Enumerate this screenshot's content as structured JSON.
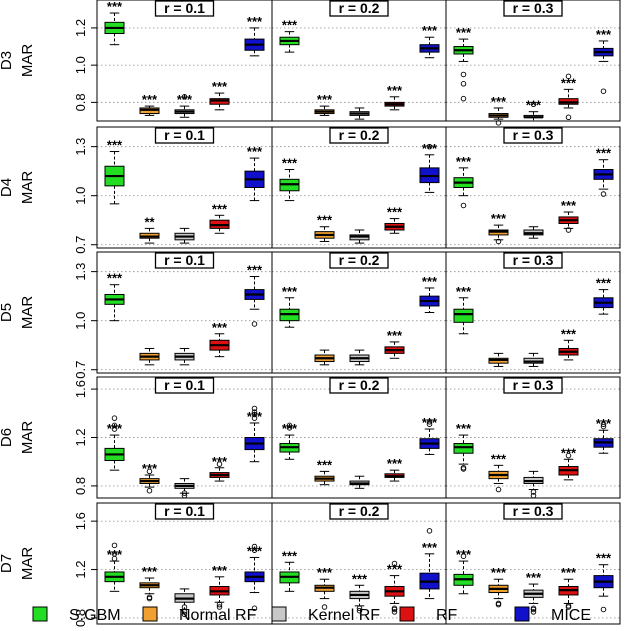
{
  "chart_data": {
    "type": "boxplot",
    "layout": "5 rows x 3 columns of small-multiple boxplot panels",
    "ylabel": "MAR",
    "columns": [
      "r = 0.1",
      "r = 0.2",
      "r = 0.3"
    ],
    "methods": [
      "S.GBM",
      "Normal RF",
      "Kernel RF",
      "RF",
      "MICE"
    ],
    "method_colors": [
      "#22dd22",
      "#f0a030",
      "#c8c8c8",
      "#dd1111",
      "#1111cc"
    ],
    "rows": [
      {
        "dataset": "D3",
        "ylim": [
          0.7,
          1.35
        ],
        "ticks": [
          0.8,
          1.0,
          1.2
        ],
        "tick_labels": [
          "0.8",
          "1.0",
          "1.2"
        ],
        "panels": [
          {
            "boxes": [
              [
                1.11,
                1.17,
                1.2,
                1.23,
                1.28
              ],
              [
                0.73,
                0.74,
                0.76,
                0.77,
                0.78
              ],
              [
                0.72,
                0.74,
                0.75,
                0.76,
                0.78
              ],
              [
                0.76,
                0.79,
                0.81,
                0.82,
                0.85
              ],
              [
                1.05,
                1.08,
                1.11,
                1.14,
                1.2
              ]
            ],
            "outliers": [
              [],
              [],
              [
                0.83
              ],
              [],
              []
            ],
            "stars": [
              "***",
              "***",
              "***",
              "***",
              "***"
            ]
          },
          {
            "boxes": [
              [
                1.07,
                1.11,
                1.13,
                1.15,
                1.18
              ],
              [
                0.73,
                0.74,
                0.75,
                0.76,
                0.78
              ],
              [
                0.71,
                0.73,
                0.74,
                0.75,
                0.77
              ],
              [
                0.76,
                0.78,
                0.79,
                0.8,
                0.83
              ],
              [
                1.04,
                1.07,
                1.09,
                1.11,
                1.15
              ]
            ],
            "outliers": [
              [],
              [],
              [],
              [],
              []
            ],
            "stars": [
              "***",
              "***",
              "",
              "***",
              "***"
            ]
          },
          {
            "boxes": [
              [
                1.02,
                1.06,
                1.08,
                1.1,
                1.14
              ],
              [
                0.71,
                0.72,
                0.73,
                0.74,
                0.77
              ],
              [
                0.7,
                0.72,
                0.72,
                0.73,
                0.75
              ],
              [
                0.77,
                0.79,
                0.8,
                0.82,
                0.87
              ],
              [
                1.02,
                1.05,
                1.07,
                1.09,
                1.13
              ]
            ],
            "outliers": [
              [
                0.82,
                0.9,
                0.95
              ],
              [
                0.69
              ],
              [
                0.79
              ],
              [
                0.72,
                0.94
              ],
              [
                0.86
              ]
            ],
            "stars": [
              "***",
              "***",
              "***",
              "***",
              "***"
            ]
          }
        ]
      },
      {
        "dataset": "D4",
        "ylim": [
          0.68,
          1.42
        ],
        "ticks": [
          0.7,
          1.0,
          1.3
        ],
        "tick_labels": [
          "0.7",
          "1.0",
          "1.3"
        ],
        "panels": [
          {
            "boxes": [
              [
                0.95,
                1.06,
                1.12,
                1.18,
                1.27
              ],
              [
                0.71,
                0.74,
                0.75,
                0.77,
                0.8
              ],
              [
                0.71,
                0.73,
                0.75,
                0.77,
                0.8
              ],
              [
                0.77,
                0.8,
                0.82,
                0.85,
                0.88
              ],
              [
                0.97,
                1.05,
                1.1,
                1.15,
                1.23
              ]
            ],
            "outliers": [
              [],
              [],
              [],
              [],
              []
            ],
            "stars": [
              "***",
              "**",
              "",
              "***",
              "***"
            ]
          },
          {
            "boxes": [
              [
                0.97,
                1.03,
                1.07,
                1.1,
                1.16
              ],
              [
                0.72,
                0.74,
                0.76,
                0.78,
                0.81
              ],
              [
                0.71,
                0.73,
                0.75,
                0.76,
                0.79
              ],
              [
                0.77,
                0.79,
                0.81,
                0.83,
                0.86
              ],
              [
                1.02,
                1.08,
                1.12,
                1.17,
                1.25
              ]
            ],
            "outliers": [
              [],
              [],
              [],
              [],
              [
                1.3
              ]
            ],
            "stars": [
              "***",
              "***",
              "",
              "***",
              "***"
            ]
          },
          {
            "boxes": [
              [
                1.0,
                1.05,
                1.08,
                1.11,
                1.17
              ],
              [
                0.73,
                0.76,
                0.78,
                0.79,
                0.82
              ],
              [
                0.74,
                0.76,
                0.77,
                0.79,
                0.81
              ],
              [
                0.8,
                0.83,
                0.85,
                0.87,
                0.9
              ],
              [
                1.04,
                1.1,
                1.13,
                1.16,
                1.22
              ]
            ],
            "outliers": [
              [
                0.94
              ],
              [
                0.72
              ],
              [],
              [
                0.79
              ],
              [
                1.01
              ]
            ],
            "stars": [
              "***",
              "***",
              "",
              "***",
              "***"
            ]
          }
        ]
      },
      {
        "dataset": "D5",
        "ylim": [
          0.68,
          1.42
        ],
        "ticks": [
          0.7,
          1.0,
          1.3
        ],
        "tick_labels": [
          "0.7",
          "1.0",
          "1.3"
        ],
        "panels": [
          {
            "boxes": [
              [
                1.0,
                1.1,
                1.13,
                1.16,
                1.22
              ],
              [
                0.73,
                0.76,
                0.78,
                0.8,
                0.83
              ],
              [
                0.73,
                0.76,
                0.78,
                0.8,
                0.83
              ],
              [
                0.78,
                0.82,
                0.85,
                0.88,
                0.92
              ],
              [
                1.07,
                1.13,
                1.16,
                1.19,
                1.27
              ]
            ],
            "outliers": [
              [],
              [],
              [],
              [],
              [
                0.98
              ]
            ],
            "stars": [
              "***",
              "",
              "",
              "***",
              "***"
            ]
          },
          {
            "boxes": [
              [
                0.96,
                1.0,
                1.04,
                1.07,
                1.14
              ],
              [
                0.73,
                0.75,
                0.77,
                0.79,
                0.82
              ],
              [
                0.73,
                0.75,
                0.77,
                0.79,
                0.82
              ],
              [
                0.77,
                0.8,
                0.82,
                0.84,
                0.87
              ],
              [
                1.05,
                1.09,
                1.12,
                1.15,
                1.2
              ]
            ],
            "outliers": [
              [],
              [],
              [],
              [],
              []
            ],
            "stars": [
              "***",
              "",
              "",
              "***",
              "***"
            ]
          },
          {
            "boxes": [
              [
                0.92,
                0.99,
                1.04,
                1.07,
                1.14
              ],
              [
                0.72,
                0.74,
                0.76,
                0.77,
                0.8
              ],
              [
                0.72,
                0.74,
                0.75,
                0.77,
                0.8
              ],
              [
                0.76,
                0.79,
                0.81,
                0.83,
                0.88
              ],
              [
                1.04,
                1.08,
                1.11,
                1.14,
                1.19
              ]
            ],
            "outliers": [
              [],
              [],
              [],
              [],
              []
            ],
            "stars": [
              "***",
              "",
              "",
              "***",
              "***"
            ]
          }
        ]
      },
      {
        "dataset": "D6",
        "ylim": [
          0.7,
          1.7
        ],
        "ticks": [
          0.8,
          1.2,
          1.6
        ],
        "tick_labels": [
          "0.8",
          "1.2",
          "1.6"
        ],
        "panels": [
          {
            "boxes": [
              [
                0.93,
                1.01,
                1.06,
                1.11,
                1.22
              ],
              [
                0.79,
                0.82,
                0.84,
                0.86,
                0.89
              ],
              [
                0.74,
                0.78,
                0.8,
                0.82,
                0.86
              ],
              [
                0.84,
                0.87,
                0.89,
                0.91,
                0.95
              ],
              [
                1.0,
                1.1,
                1.15,
                1.2,
                1.32
              ]
            ],
            "outliers": [
              [
                1.27,
                1.3,
                1.36
              ],
              [
                0.76,
                0.92
              ],
              [
                0.72,
                0.74
              ],
              [
                0.98
              ],
              [
                1.36,
                1.39,
                1.41,
                1.44
              ]
            ],
            "stars": [
              "***",
              "***",
              "",
              "***",
              "***"
            ]
          },
          {
            "boxes": [
              [
                1.02,
                1.08,
                1.12,
                1.15,
                1.22
              ],
              [
                0.81,
                0.84,
                0.86,
                0.88,
                0.92
              ],
              [
                0.78,
                0.81,
                0.82,
                0.84,
                0.88
              ],
              [
                0.84,
                0.87,
                0.88,
                0.9,
                0.93
              ],
              [
                1.06,
                1.11,
                1.15,
                1.19,
                1.27
              ]
            ],
            "outliers": [
              [
                1.28,
                1.3
              ],
              [],
              [],
              [],
              [
                1.31,
                1.33
              ]
            ],
            "stars": [
              "***",
              "***",
              "",
              "***",
              "***"
            ]
          },
          {
            "boxes": [
              [
                0.98,
                1.07,
                1.12,
                1.15,
                1.22
              ],
              [
                0.82,
                0.86,
                0.89,
                0.92,
                0.97
              ],
              [
                0.77,
                0.82,
                0.84,
                0.87,
                0.92
              ],
              [
                0.85,
                0.89,
                0.93,
                0.96,
                1.02
              ],
              [
                1.07,
                1.12,
                1.16,
                1.19,
                1.26
              ]
            ],
            "outliers": [
              [
                0.94,
                0.95
              ],
              [
                0.77
              ],
              [
                0.72,
                0.75
              ],
              [
                1.05
              ],
              [
                1.29,
                1.31
              ]
            ],
            "stars": [
              "***",
              "***",
              "",
              "***",
              "***"
            ]
          }
        ]
      },
      {
        "dataset": "D7",
        "ylim": [
          0.75,
          1.75
        ],
        "ticks": [
          0.8,
          1.2,
          1.6
        ],
        "tick_labels": [
          "0.8",
          "1.2",
          "1.6"
        ],
        "panels": [
          {
            "boxes": [
              [
                1.02,
                1.1,
                1.14,
                1.18,
                1.27
              ],
              [
                1.0,
                1.05,
                1.07,
                1.09,
                1.13
              ],
              [
                0.87,
                0.93,
                0.96,
                1.0,
                1.04
              ],
              [
                0.93,
                0.99,
                1.02,
                1.06,
                1.14
              ],
              [
                1.01,
                1.1,
                1.14,
                1.18,
                1.3
              ]
            ],
            "outliers": [
              [
                1.29,
                1.33,
                1.4
              ],
              [
                0.96,
                0.97
              ],
              [
                0.83,
                0.85,
                0.89
              ],
              [
                0.89,
                0.91
              ],
              [
                0.88,
                1.36,
                1.39
              ]
            ],
            "stars": [
              "***",
              "***",
              "",
              "***",
              "***"
            ]
          },
          {
            "boxes": [
              [
                1.02,
                1.09,
                1.14,
                1.18,
                1.26
              ],
              [
                0.96,
                1.02,
                1.05,
                1.07,
                1.12
              ],
              [
                0.9,
                0.96,
                0.99,
                1.02,
                1.07
              ],
              [
                0.92,
                0.98,
                1.02,
                1.06,
                1.15
              ],
              [
                0.96,
                1.04,
                1.1,
                1.17,
                1.33
              ]
            ],
            "outliers": [
              [],
              [
                0.89
              ],
              [
                0.86,
                0.88
              ],
              [
                0.85,
                0.87,
                0.88,
                1.25
              ],
              [
                1.52
              ]
            ],
            "stars": [
              "***",
              "***",
              "***",
              "***",
              "***"
            ]
          },
          {
            "boxes": [
              [
                1.0,
                1.07,
                1.12,
                1.16,
                1.27
              ],
              [
                0.96,
                1.01,
                1.04,
                1.07,
                1.12
              ],
              [
                0.92,
                0.97,
                1.0,
                1.03,
                1.08
              ],
              [
                0.92,
                0.99,
                1.03,
                1.06,
                1.12
              ],
              [
                0.98,
                1.05,
                1.1,
                1.15,
                1.24
              ]
            ],
            "outliers": [
              [
                1.31
              ],
              [
                0.91,
                0.92
              ],
              [
                0.85,
                0.87,
                0.88
              ],
              [
                0.89,
                0.9
              ],
              [
                0.87
              ]
            ],
            "stars": [
              "***",
              "***",
              "***",
              "***",
              "***"
            ]
          }
        ]
      }
    ],
    "legend": [
      {
        "label": "S.GBM",
        "color": "#22dd22"
      },
      {
        "label": "Normal RF",
        "color": "#f0a030"
      },
      {
        "label": "Kernel RF",
        "color": "#c8c8c8"
      },
      {
        "label": "RF",
        "color": "#dd1111"
      },
      {
        "label": "MICE",
        "color": "#1111cc"
      }
    ]
  }
}
